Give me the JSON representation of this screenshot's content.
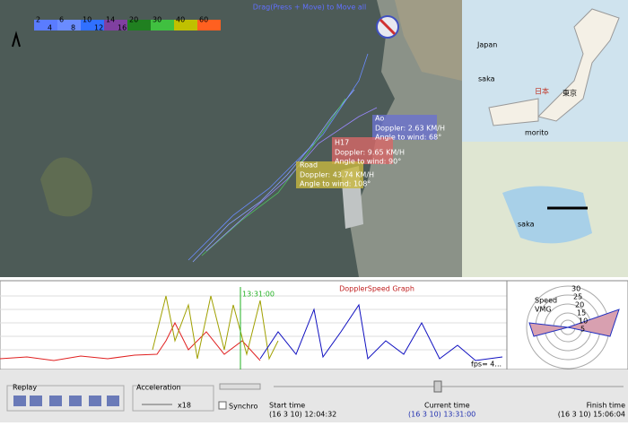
{
  "map": {
    "hint": "Drag(Press + Move) to Move all",
    "scale_top": [
      "2",
      "6",
      "10",
      "14",
      "20",
      "30",
      "40",
      "60"
    ],
    "scale_bottom": [
      "4",
      "8",
      "12",
      "16"
    ],
    "boats": [
      {
        "name": "Ao",
        "doppler": "Doppler: 2.63 KM/H",
        "angle": "Angle to wind: 68°"
      },
      {
        "name": "H17",
        "doppler": "Doppler: 9.65 KM/H",
        "angle": "Angle to wind: 90°"
      },
      {
        "name": "Road",
        "doppler": "Doppler: 43.74 KM/H",
        "angle": "Angle to wind: 108°"
      }
    ]
  },
  "inset": {
    "country": "Japan",
    "city": "saka",
    "place": "morito",
    "nihon": "日本",
    "tokyo": "東京",
    "zoom_city": "saka"
  },
  "graph": {
    "title": "DopplerSpeed Graph",
    "cursor_time": "13:31:00",
    "fps": "fps= 4..."
  },
  "polar": {
    "legend": [
      "Speed",
      "VMG"
    ],
    "rings": [
      "30",
      "25",
      "20",
      "15",
      "10",
      "5"
    ]
  },
  "controls": {
    "replay": "Replay",
    "acceleration": "Acceleration",
    "multiplier": "x18",
    "synchro": "Synchro",
    "start_label": "Start time",
    "start": "(16 3 10) 12:04:32",
    "current_label": "Current time",
    "current": "(16 3 10) 13:31:00",
    "finish_label": "Finish time",
    "finish": "(16 3 10) 15:06:04"
  }
}
